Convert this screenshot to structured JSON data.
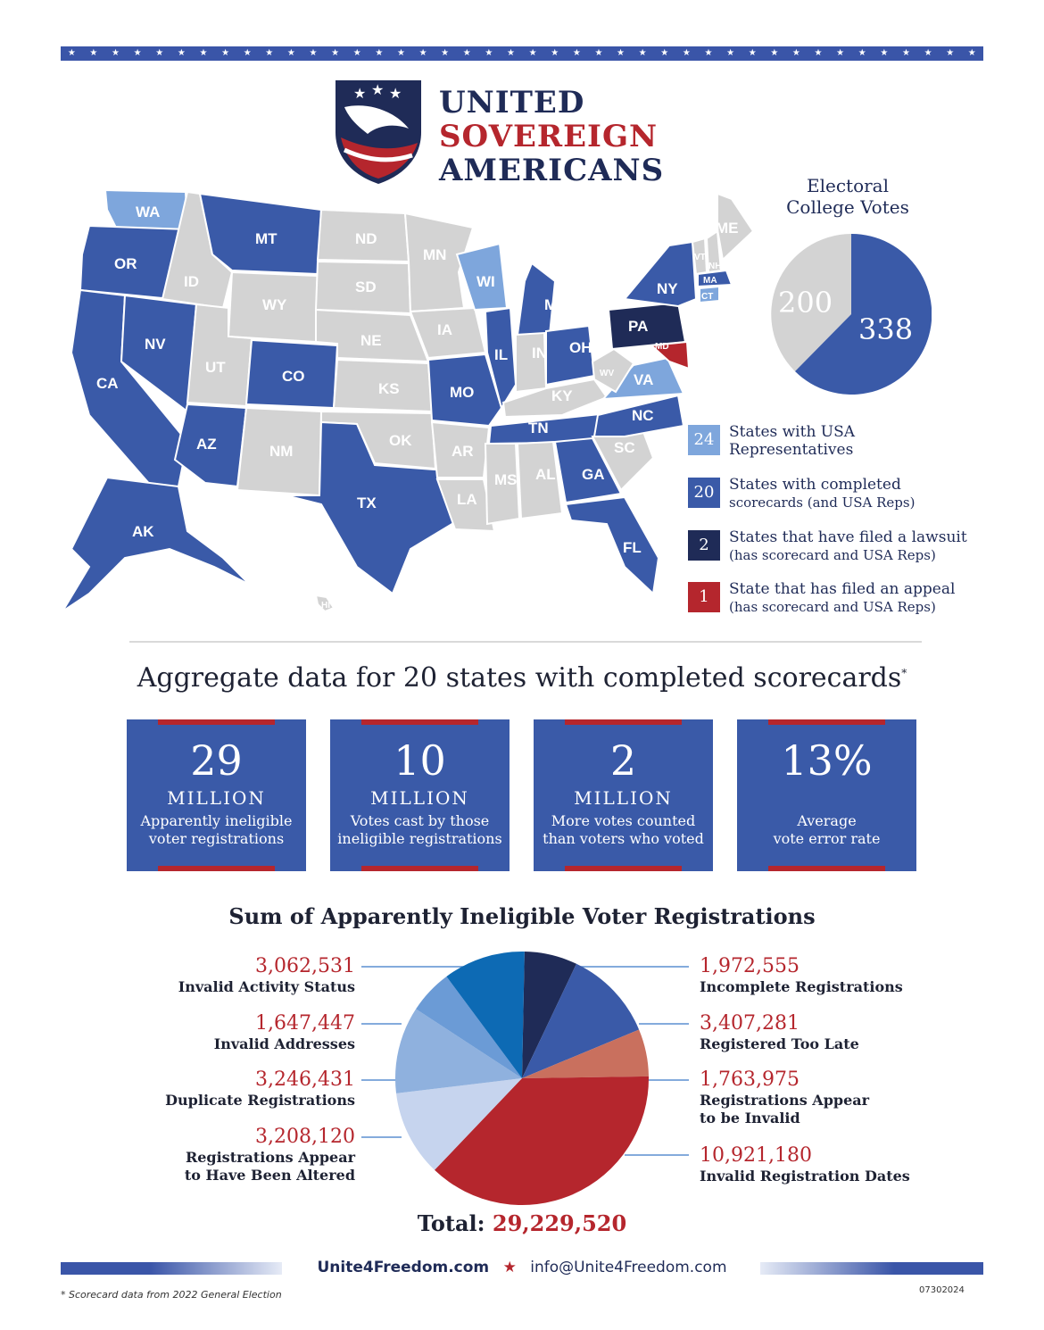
{
  "brand": {
    "line1": "UNITED",
    "line2": "SOVEREIGN",
    "line3": "AMERICANS"
  },
  "colors": {
    "light_blue": "#7ea6dc",
    "blue": "#3a5aa8",
    "navy": "#1f2b57",
    "red": "#b5262d",
    "gray": "#d3d3d3"
  },
  "electoral": {
    "title_line1": "Electoral",
    "title_line2": "College Votes",
    "gray_votes": "200",
    "blue_votes": "338"
  },
  "map": {
    "states": [
      {
        "code": "WA",
        "status": "light"
      },
      {
        "code": "OR",
        "status": "blue"
      },
      {
        "code": "CA",
        "status": "blue"
      },
      {
        "code": "ID",
        "status": "gray"
      },
      {
        "code": "NV",
        "status": "blue"
      },
      {
        "code": "MT",
        "status": "blue"
      },
      {
        "code": "WY",
        "status": "gray"
      },
      {
        "code": "UT",
        "status": "gray"
      },
      {
        "code": "AZ",
        "status": "blue"
      },
      {
        "code": "CO",
        "status": "blue"
      },
      {
        "code": "NM",
        "status": "gray"
      },
      {
        "code": "ND",
        "status": "gray"
      },
      {
        "code": "SD",
        "status": "gray"
      },
      {
        "code": "NE",
        "status": "gray"
      },
      {
        "code": "KS",
        "status": "gray"
      },
      {
        "code": "OK",
        "status": "gray"
      },
      {
        "code": "TX",
        "status": "blue"
      },
      {
        "code": "MN",
        "status": "gray"
      },
      {
        "code": "IA",
        "status": "gray"
      },
      {
        "code": "MO",
        "status": "blue"
      },
      {
        "code": "AR",
        "status": "gray"
      },
      {
        "code": "LA",
        "status": "gray"
      },
      {
        "code": "WI",
        "status": "light"
      },
      {
        "code": "IL",
        "status": "blue"
      },
      {
        "code": "MI",
        "status": "blue"
      },
      {
        "code": "IN",
        "status": "gray"
      },
      {
        "code": "OH",
        "status": "blue"
      },
      {
        "code": "KY",
        "status": "gray"
      },
      {
        "code": "TN",
        "status": "blue"
      },
      {
        "code": "MS",
        "status": "gray"
      },
      {
        "code": "AL",
        "status": "gray"
      },
      {
        "code": "GA",
        "status": "blue"
      },
      {
        "code": "FL",
        "status": "blue"
      },
      {
        "code": "SC",
        "status": "gray"
      },
      {
        "code": "NC",
        "status": "blue"
      },
      {
        "code": "VA",
        "status": "light"
      },
      {
        "code": "WV",
        "status": "gray"
      },
      {
        "code": "PA",
        "status": "navy"
      },
      {
        "code": "NY",
        "status": "blue"
      },
      {
        "code": "VT",
        "status": "gray"
      },
      {
        "code": "NH",
        "status": "gray"
      },
      {
        "code": "ME",
        "status": "gray"
      },
      {
        "code": "MA",
        "status": "blue"
      },
      {
        "code": "CT",
        "status": "light"
      },
      {
        "code": "MD",
        "status": "red"
      },
      {
        "code": "AK",
        "status": "blue"
      },
      {
        "code": "HI",
        "status": "gray"
      }
    ]
  },
  "legend": [
    {
      "count": "24",
      "line1": "States with USA",
      "line2": "Representatives",
      "status": "light"
    },
    {
      "count": "20",
      "line1": "States with completed",
      "line2": "scorecards (and USA Reps)",
      "status": "blue"
    },
    {
      "count": "2",
      "line1": "States that have filed a lawsuit",
      "line2": "(has scorecard and USA Reps)",
      "status": "navy"
    },
    {
      "count": "1",
      "line1": "State that has filed an appeal",
      "line2": "(has scorecard and USA Reps)",
      "status": "red"
    }
  ],
  "aggregate": {
    "title": "Aggregate data for 20 states with completed scorecards",
    "title_mark": "*",
    "boxes": [
      {
        "num": "29",
        "unit": "MILLION",
        "desc1": "Apparently ineligible",
        "desc2": "voter registrations"
      },
      {
        "num": "10",
        "unit": "MILLION",
        "desc1": "Votes cast by those",
        "desc2": "ineligible registrations"
      },
      {
        "num": "2",
        "unit": "MILLION",
        "desc1": "More votes counted",
        "desc2": "than voters who voted"
      },
      {
        "num": "13%",
        "unit": "",
        "desc1": "Average",
        "desc2": "vote error rate"
      }
    ]
  },
  "breakdown": {
    "title": "Sum of Apparently Ineligible Voter Registrations",
    "total_label": "Total:",
    "total_value": "29,229,520",
    "left": [
      {
        "value": "3,062,531",
        "label1": "Invalid Activity Status",
        "label2": ""
      },
      {
        "value": "1,647,447",
        "label1": "Invalid Addresses",
        "label2": ""
      },
      {
        "value": "3,246,431",
        "label1": "Duplicate Registrations",
        "label2": ""
      },
      {
        "value": "3,208,120",
        "label1": "Registrations Appear",
        "label2": "to Have Been Altered"
      }
    ],
    "right": [
      {
        "value": "1,972,555",
        "label1": "Incomplete Registrations",
        "label2": ""
      },
      {
        "value": "3,407,281",
        "label1": "Registered Too Late",
        "label2": ""
      },
      {
        "value": "1,763,975",
        "label1": "Registrations Appear",
        "label2": "to be Invalid"
      },
      {
        "value": "10,921,180",
        "label1": "Invalid Registration Dates",
        "label2": ""
      }
    ]
  },
  "chart_data": {
    "type": "pie",
    "title": "Sum of Apparently Ineligible Voter Registrations",
    "slices": [
      {
        "label": "Incomplete Registrations",
        "value": 1972555,
        "color": "#1f2b57"
      },
      {
        "label": "Registered Too Late",
        "value": 3407281,
        "color": "#3a5aa8"
      },
      {
        "label": "Registrations Appear to be Invalid",
        "value": 1763975,
        "color": "#c9705e"
      },
      {
        "label": "Invalid Registration Dates",
        "value": 10921180,
        "color": "#b5262d"
      },
      {
        "label": "Registrations Appear to Have Been Altered",
        "value": 3208120,
        "color": "#c6d4ee"
      },
      {
        "label": "Duplicate Registrations",
        "value": 3246431,
        "color": "#8fb1de"
      },
      {
        "label": "Invalid Addresses",
        "value": 1647447,
        "color": "#6b9bd6"
      },
      {
        "label": "Invalid Activity Status",
        "value": 3062531,
        "color": "#0d6ab4"
      }
    ],
    "total": 29229520
  },
  "footer": {
    "site": "Unite4Freedom.com",
    "star": "★",
    "email": "info@Unite4Freedom.com",
    "footnote": "* Scorecard data from 2022 General Election",
    "code": "07302024"
  }
}
